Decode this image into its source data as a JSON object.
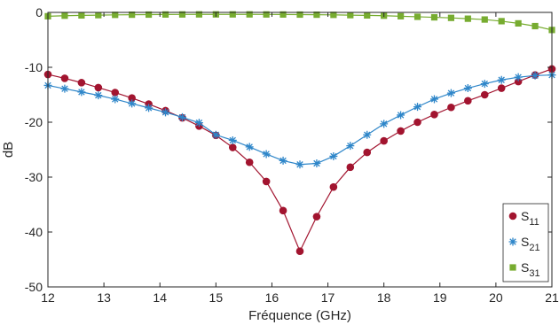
{
  "chart_data": {
    "type": "line",
    "xlabel": "Fréquence (GHz)",
    "ylabel": "dB",
    "xlim": [
      12,
      21
    ],
    "ylim": [
      -50,
      0
    ],
    "xticks": [
      12,
      13,
      14,
      15,
      16,
      17,
      18,
      19,
      20,
      21
    ],
    "yticks": [
      0,
      -10,
      -20,
      -30,
      -40,
      -50
    ],
    "grid": false,
    "legend_position": "bottom-right",
    "x": [
      12.0,
      12.3,
      12.6,
      12.9,
      13.2,
      13.5,
      13.8,
      14.1,
      14.4,
      14.7,
      15.0,
      15.3,
      15.6,
      15.9,
      16.2,
      16.5,
      16.8,
      17.1,
      17.4,
      17.7,
      18.0,
      18.3,
      18.6,
      18.9,
      19.2,
      19.5,
      19.8,
      20.1,
      20.4,
      20.7,
      21.0
    ],
    "series": [
      {
        "name": "S11",
        "label_main": "S",
        "label_sub": "11",
        "color": "#a2142f",
        "marker": "circle",
        "values": [
          -11.3,
          -12.0,
          -12.8,
          -13.7,
          -14.6,
          -15.6,
          -16.7,
          -17.9,
          -19.2,
          -20.7,
          -22.4,
          -24.6,
          -27.3,
          -30.8,
          -36.1,
          -43.5,
          -37.2,
          -31.8,
          -28.2,
          -25.5,
          -23.4,
          -21.6,
          -20.0,
          -18.6,
          -17.3,
          -16.1,
          -15.0,
          -13.8,
          -12.6,
          -11.4,
          -10.3
        ]
      },
      {
        "name": "S21",
        "label_main": "S",
        "label_sub": "21",
        "color": "#2e86c9",
        "marker": "asterisk",
        "values": [
          -13.3,
          -13.9,
          -14.5,
          -15.1,
          -15.8,
          -16.6,
          -17.4,
          -18.2,
          -19.1,
          -20.1,
          -22.3,
          -23.3,
          -24.5,
          -25.8,
          -27.0,
          -27.7,
          -27.5,
          -26.2,
          -24.3,
          -22.3,
          -20.3,
          -18.7,
          -17.2,
          -15.8,
          -14.7,
          -13.8,
          -13.0,
          -12.3,
          -11.8,
          -11.5,
          -11.4
        ]
      },
      {
        "name": "S31",
        "label_main": "S",
        "label_sub": "31",
        "color": "#77ac30",
        "marker": "square",
        "values": [
          -0.7,
          -0.6,
          -0.55,
          -0.5,
          -0.45,
          -0.42,
          -0.4,
          -0.38,
          -0.37,
          -0.36,
          -0.36,
          -0.36,
          -0.36,
          -0.37,
          -0.38,
          -0.4,
          -0.42,
          -0.45,
          -0.5,
          -0.55,
          -0.6,
          -0.7,
          -0.8,
          -0.9,
          -1.0,
          -1.15,
          -1.3,
          -1.6,
          -2.0,
          -2.5,
          -3.2
        ]
      }
    ]
  }
}
